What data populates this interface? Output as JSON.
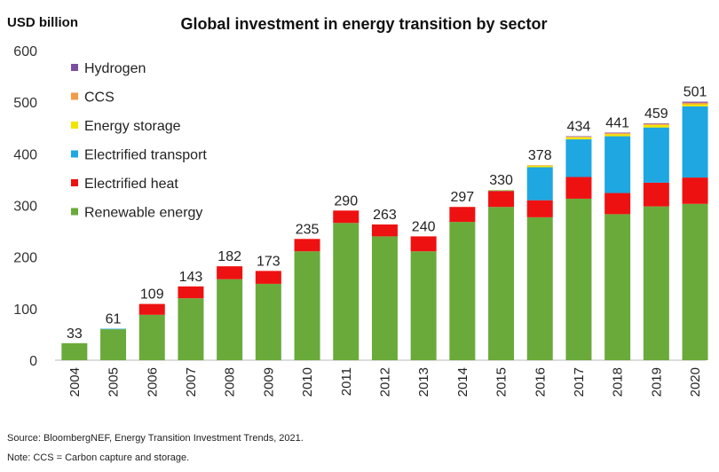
{
  "chart_data": {
    "type": "bar",
    "stacked": true,
    "title": "Global investment in energy transition by sector",
    "ylabel": "USD billion",
    "ylim": [
      0,
      600
    ],
    "yticks": [
      0,
      100,
      200,
      300,
      400,
      500,
      600
    ],
    "grid": false,
    "legend_position": "top-left",
    "categories": [
      "2004",
      "2005",
      "2006",
      "2007",
      "2008",
      "2009",
      "2010",
      "2011",
      "2012",
      "2013",
      "2014",
      "2015",
      "2016",
      "2017",
      "2018",
      "2019",
      "2020"
    ],
    "totals": [
      33,
      61,
      109,
      143,
      182,
      173,
      235,
      290,
      263,
      240,
      297,
      330,
      378,
      434,
      441,
      459,
      501
    ],
    "series": [
      {
        "name": "Renewable energy",
        "color": "#6aaa3a",
        "values": [
          33,
          60,
          88,
          120,
          157,
          148,
          211,
          266,
          240,
          211,
          268,
          297,
          277,
          313,
          283,
          298,
          303
        ]
      },
      {
        "name": "Electrified heat",
        "color": "#ee1111",
        "values": [
          0,
          0,
          21,
          23,
          25,
          25,
          24,
          24,
          23,
          29,
          29,
          31,
          33,
          42,
          41,
          46,
          51
        ]
      },
      {
        "name": "Electrified transport",
        "color": "#1ea7e1",
        "values": [
          0,
          1,
          0,
          0,
          0,
          0,
          0,
          0,
          0,
          0,
          0,
          1,
          64,
          73,
          110,
          107,
          138
        ]
      },
      {
        "name": "Energy storage",
        "color": "#f2e500",
        "values": [
          0,
          0,
          0,
          0,
          0,
          0,
          0,
          0,
          0,
          0,
          0,
          1,
          3,
          4,
          4,
          5,
          4
        ]
      },
      {
        "name": "CCS",
        "color": "#f59a45",
        "values": [
          0,
          0,
          0,
          0,
          0,
          0,
          0,
          0,
          0,
          0,
          0,
          0,
          1,
          1,
          2,
          2,
          3
        ]
      },
      {
        "name": "Hydrogen",
        "color": "#7b4fa0",
        "values": [
          0,
          0,
          0,
          0,
          0,
          0,
          0,
          0,
          0,
          0,
          0,
          0,
          0,
          1,
          1,
          1,
          2
        ]
      }
    ]
  },
  "footnotes": {
    "source": "Source: BloombergNEF, Energy Transition Investment Trends, 2021.",
    "note": "Note: CCS = Carbon capture and storage."
  }
}
